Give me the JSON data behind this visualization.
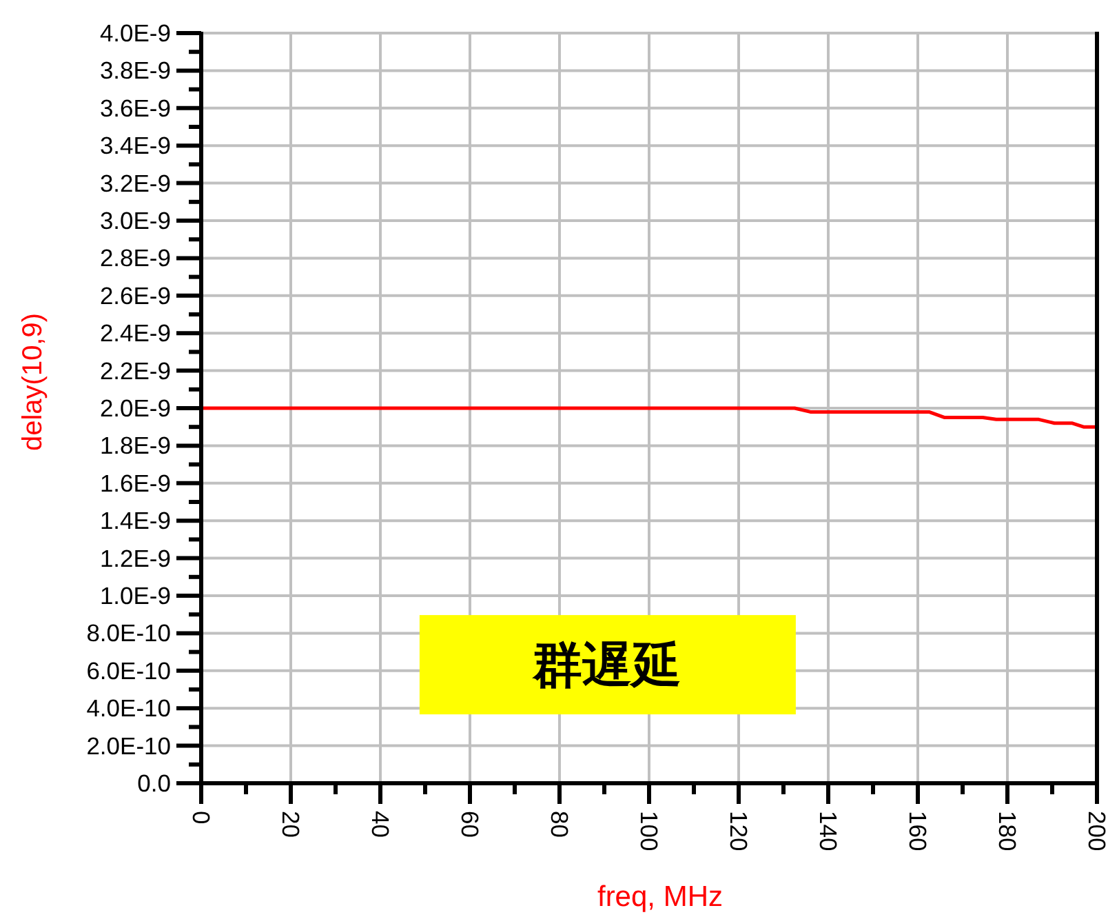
{
  "chart_data": {
    "type": "line",
    "xlabel": "freq, MHz",
    "ylabel": "delay(10,9)",
    "annotations": [
      "群遅延"
    ],
    "series": [
      {
        "color": "#ff0000",
        "x": [
          0,
          132.5,
          136,
          162.5,
          166,
          174.5,
          177.5,
          187,
          190.5,
          194.5,
          197,
          200
        ],
        "values": [
          2e-09,
          2e-09,
          1.98e-09,
          1.98e-09,
          1.95e-09,
          1.95e-09,
          1.94e-09,
          1.94e-09,
          1.92e-09,
          1.92e-09,
          1.9e-09,
          1.9e-09
        ]
      }
    ],
    "xlim": [
      0,
      200
    ],
    "xticks": [
      0,
      20,
      40,
      60,
      80,
      100,
      120,
      140,
      160,
      180,
      200
    ],
    "ylim": [
      0,
      4e-09
    ],
    "yticks": [
      {
        "value": 0,
        "label": "0.0"
      },
      {
        "value": 2e-10,
        "label": "2.0E-10"
      },
      {
        "value": 4e-10,
        "label": "4.0E-10"
      },
      {
        "value": 6e-10,
        "label": "6.0E-10"
      },
      {
        "value": 8e-10,
        "label": "8.0E-10"
      },
      {
        "value": 1e-09,
        "label": "1.0E-9"
      },
      {
        "value": 1.2e-09,
        "label": "1.2E-9"
      },
      {
        "value": 1.4e-09,
        "label": "1.4E-9"
      },
      {
        "value": 1.6e-09,
        "label": "1.6E-9"
      },
      {
        "value": 1.8e-09,
        "label": "1.8E-9"
      },
      {
        "value": 2e-09,
        "label": "2.0E-9"
      },
      {
        "value": 2.2e-09,
        "label": "2.2E-9"
      },
      {
        "value": 2.4e-09,
        "label": "2.4E-9"
      },
      {
        "value": 2.6e-09,
        "label": "2.6E-9"
      },
      {
        "value": 2.8e-09,
        "label": "2.8E-9"
      },
      {
        "value": 3e-09,
        "label": "3.0E-9"
      },
      {
        "value": 3.2e-09,
        "label": "3.2E-9"
      },
      {
        "value": 3.4e-09,
        "label": "3.4E-9"
      },
      {
        "value": 3.6e-09,
        "label": "3.6E-9"
      },
      {
        "value": 3.8e-09,
        "label": "3.8E-9"
      },
      {
        "value": 4e-09,
        "label": "4.0E-9"
      }
    ],
    "grid": true
  }
}
